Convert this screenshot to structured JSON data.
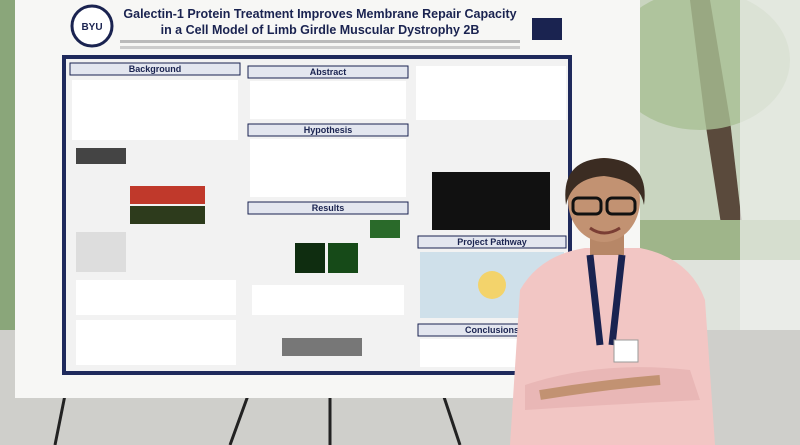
{
  "poster": {
    "logo": "BYU",
    "title_lines": [
      "Galectin-1 Protein Treatment Improves Membrane Repair Capacity",
      "in a Cell Model of Limb Girdle Muscular Dystrophy 2B"
    ],
    "sections": [
      "Background",
      "Abstract",
      "Hypothesis",
      "Results",
      "Project Pathway",
      "Conclusions"
    ]
  }
}
